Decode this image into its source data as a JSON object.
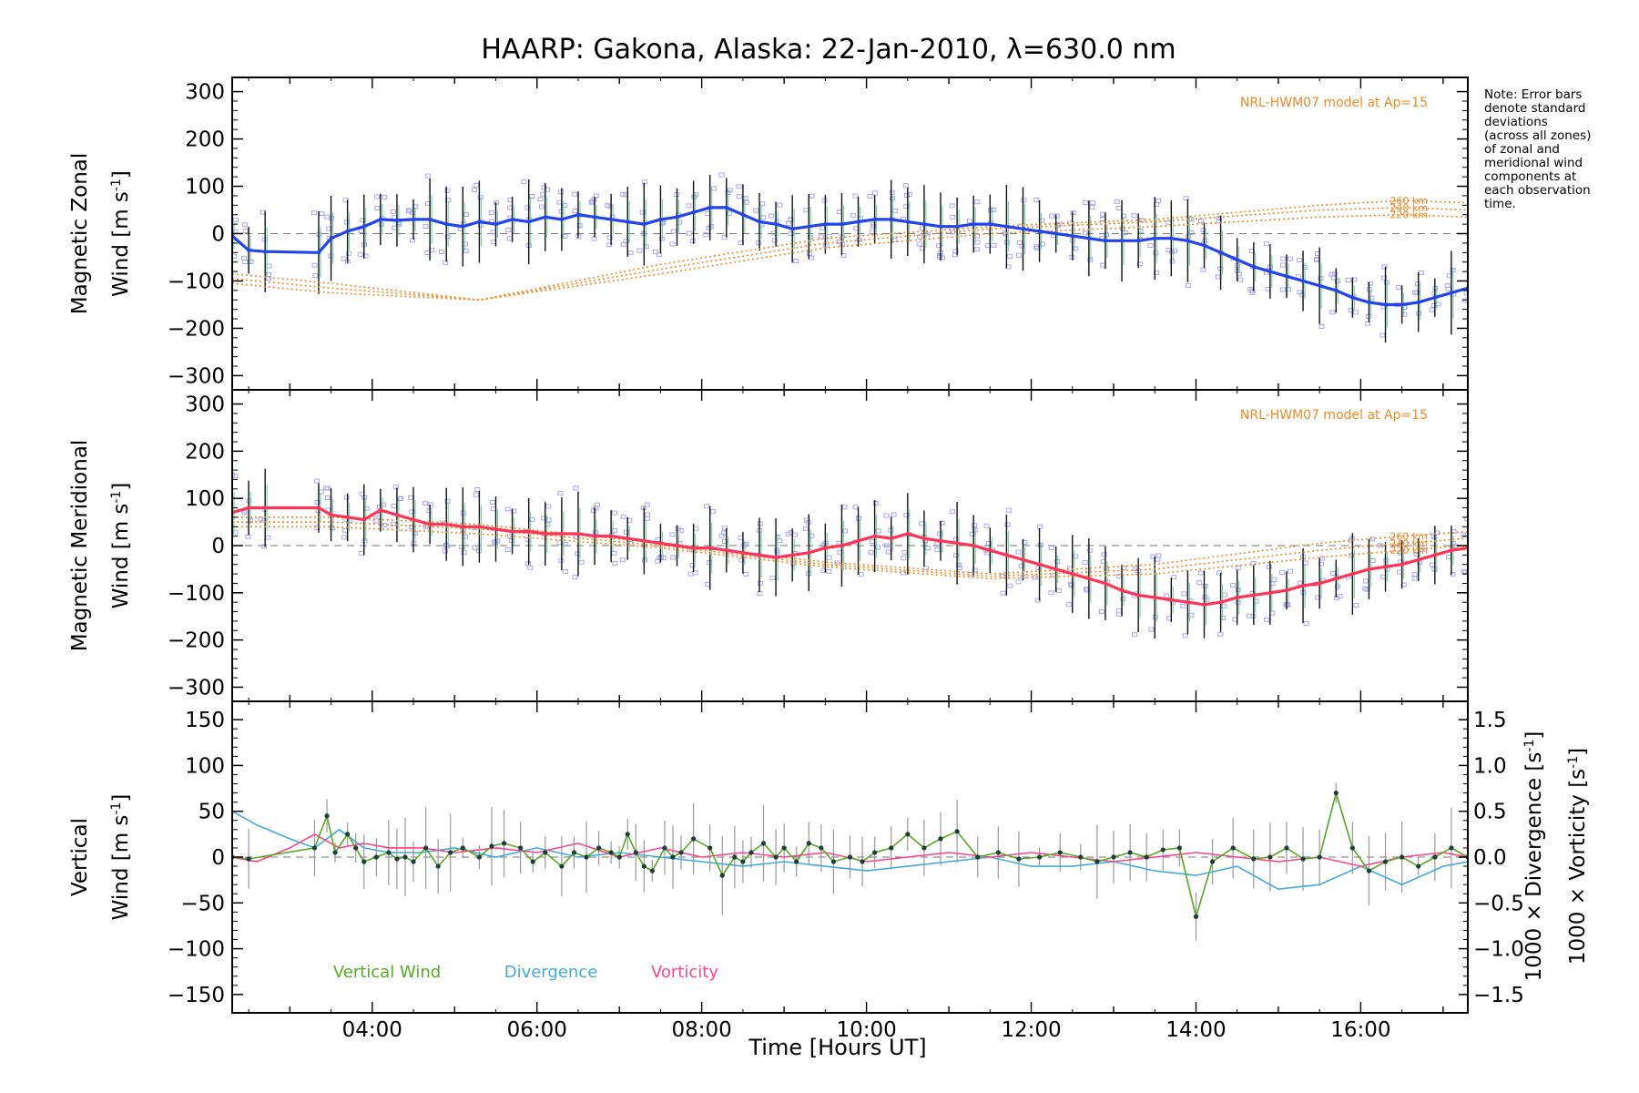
{
  "title": "HAARP: Gakona,  Alaska: 22-Jan-2010, λ=630.0 nm",
  "note_lines": [
    "Note: Error bars",
    "denote standard",
    "deviations",
    "(across all zones)",
    "of zonal and",
    "meridional wind",
    "components at",
    "each observation",
    "time."
  ],
  "xaxis": {
    "label": "Time [Hours UT]",
    "ticks": [
      "04:00",
      "06:00",
      "08:00",
      "10:00",
      "12:00",
      "14:00",
      "16:00"
    ],
    "range": [
      2.3,
      17.3
    ]
  },
  "colors": {
    "zonal": "#2244ee",
    "meridional": "#ff3355",
    "vertical": "#55aa22",
    "divergence": "#44aadd",
    "vorticity": "#ff4488",
    "model": "#f08a24",
    "zone_boxes": "#a8a8ee",
    "error_bars": "#111111"
  },
  "chart_data": [
    {
      "type": "line",
      "panel": "zonal",
      "ylabel_line1": "Magnetic Zonal",
      "ylabel_line2": "Wind [m s",
      "ylabel_sup": "-1",
      "ylabel_end": "]",
      "ylim": [
        -330,
        330
      ],
      "yticks": [
        "300",
        "200",
        "100",
        "0",
        "−100",
        "−200",
        "−300"
      ],
      "model_label": "NRL-HWM07 model at Ap=15",
      "model_alt_labels": [
        "260 km",
        "240 km",
        "220 km"
      ],
      "x": [
        2.3,
        2.5,
        2.7,
        3.35,
        3.5,
        3.7,
        3.9,
        4.1,
        4.3,
        4.5,
        4.7,
        4.9,
        5.1,
        5.3,
        5.5,
        5.7,
        5.9,
        6.1,
        6.3,
        6.5,
        6.7,
        6.9,
        7.1,
        7.3,
        7.5,
        7.7,
        7.9,
        8.1,
        8.3,
        8.5,
        8.7,
        8.9,
        9.1,
        9.3,
        9.5,
        9.7,
        9.9,
        10.1,
        10.3,
        10.5,
        10.7,
        10.9,
        11.1,
        11.3,
        11.5,
        11.7,
        11.9,
        12.1,
        12.3,
        12.5,
        12.7,
        12.9,
        13.1,
        13.3,
        13.5,
        13.7,
        13.9,
        14.1,
        14.3,
        14.5,
        14.7,
        14.9,
        15.1,
        15.3,
        15.5,
        15.7,
        15.9,
        16.1,
        16.3,
        16.5,
        16.7,
        16.9,
        17.1,
        17.3
      ],
      "series": [
        {
          "values": [
            -5,
            -35,
            -38,
            -40,
            -10,
            5,
            15,
            30,
            28,
            30,
            30,
            20,
            15,
            25,
            20,
            30,
            25,
            35,
            30,
            40,
            35,
            30,
            25,
            20,
            30,
            35,
            45,
            55,
            55,
            40,
            25,
            20,
            10,
            15,
            20,
            20,
            25,
            30,
            30,
            25,
            20,
            15,
            15,
            20,
            20,
            15,
            10,
            5,
            0,
            -5,
            -10,
            -15,
            -15,
            -15,
            -10,
            -10,
            -15,
            -25,
            -40,
            -55,
            -70,
            -80,
            -90,
            -100,
            -110,
            -120,
            -135,
            -145,
            -150,
            -150,
            -145,
            -135,
            -125,
            -115
          ]
        }
      ],
      "model": [
        {
          "name": "260 km",
          "x": [
            2.3,
            3.5,
            5.3,
            7.5,
            9.5,
            11.5,
            13.5,
            15.5,
            16.5,
            17.3
          ],
          "values": [
            -85,
            -105,
            -140,
            -65,
            -10,
            15,
            30,
            60,
            70,
            65
          ]
        },
        {
          "name": "240 km",
          "x": [
            2.3,
            3.5,
            5.3,
            7.5,
            9.5,
            11.5,
            13.5,
            15.5,
            16.5,
            17.3
          ],
          "values": [
            -95,
            -115,
            -140,
            -75,
            -20,
            10,
            25,
            50,
            55,
            50
          ]
        },
        {
          "name": "220 km",
          "x": [
            2.3,
            3.5,
            5.3,
            7.5,
            9.5,
            11.5,
            13.5,
            15.5,
            16.5,
            17.3
          ],
          "values": [
            -105,
            -125,
            -140,
            -85,
            -30,
            0,
            15,
            35,
            40,
            35
          ]
        }
      ]
    },
    {
      "type": "line",
      "panel": "meridional",
      "ylabel_line1": "Magnetic Meridional",
      "ylabel_line2": "Wind [m s",
      "ylabel_sup": "-1",
      "ylabel_end": "]",
      "ylim": [
        -330,
        330
      ],
      "yticks": [
        "300",
        "200",
        "100",
        "0",
        "−100",
        "−200",
        "−300"
      ],
      "model_label": "NRL-HWM07 model at Ap=15",
      "model_alt_labels": [
        "260 km",
        "240 km",
        "220 km"
      ],
      "x": [
        2.3,
        2.5,
        2.7,
        3.35,
        3.5,
        3.7,
        3.9,
        4.1,
        4.3,
        4.5,
        4.7,
        4.9,
        5.1,
        5.3,
        5.5,
        5.7,
        5.9,
        6.1,
        6.3,
        6.5,
        6.7,
        6.9,
        7.1,
        7.3,
        7.5,
        7.7,
        7.9,
        8.1,
        8.3,
        8.5,
        8.7,
        8.9,
        9.1,
        9.3,
        9.5,
        9.7,
        9.9,
        10.1,
        10.3,
        10.5,
        10.7,
        10.9,
        11.1,
        11.3,
        11.5,
        11.7,
        11.9,
        12.1,
        12.3,
        12.5,
        12.7,
        12.9,
        13.1,
        13.3,
        13.5,
        13.7,
        13.9,
        14.1,
        14.3,
        14.5,
        14.7,
        14.9,
        15.1,
        15.3,
        15.5,
        15.7,
        15.9,
        16.1,
        16.3,
        16.5,
        16.7,
        16.9,
        17.1,
        17.3
      ],
      "series": [
        {
          "values": [
            70,
            80,
            80,
            80,
            65,
            60,
            55,
            75,
            65,
            55,
            45,
            45,
            40,
            40,
            35,
            30,
            30,
            25,
            25,
            25,
            20,
            20,
            15,
            10,
            5,
            0,
            -5,
            -5,
            -10,
            -15,
            -20,
            -25,
            -20,
            -15,
            -5,
            0,
            10,
            20,
            15,
            25,
            15,
            10,
            5,
            0,
            -10,
            -20,
            -30,
            -40,
            -50,
            -60,
            -70,
            -80,
            -95,
            -105,
            -110,
            -115,
            -120,
            -125,
            -120,
            -110,
            -105,
            -100,
            -95,
            -85,
            -80,
            -70,
            -60,
            -50,
            -45,
            -40,
            -30,
            -20,
            -10,
            -5
          ]
        }
      ],
      "model": [
        {
          "name": "260 km",
          "x": [
            2.3,
            3.5,
            5.3,
            7.5,
            9.5,
            11.5,
            13.5,
            15.5,
            16.5,
            17.3
          ],
          "values": [
            60,
            60,
            45,
            5,
            -35,
            -60,
            -40,
            5,
            20,
            30
          ]
        },
        {
          "name": "240 km",
          "x": [
            2.3,
            3.5,
            5.3,
            7.5,
            9.5,
            11.5,
            13.5,
            15.5,
            16.5,
            17.3
          ],
          "values": [
            50,
            50,
            35,
            0,
            -40,
            -65,
            -50,
            -10,
            5,
            15
          ]
        },
        {
          "name": "220 km",
          "x": [
            2.3,
            3.5,
            5.3,
            7.5,
            9.5,
            11.5,
            13.5,
            15.5,
            16.5,
            17.3
          ],
          "values": [
            40,
            40,
            25,
            -5,
            -45,
            -70,
            -60,
            -25,
            -10,
            0
          ]
        }
      ]
    },
    {
      "type": "line",
      "panel": "vertical",
      "ylabel_line1": "Vertical",
      "ylabel_line2": "Wind [m s",
      "ylabel_sup": "-1",
      "ylabel_end": "]",
      "ylim": [
        -170,
        170
      ],
      "yticks": [
        "150",
        "100",
        "50",
        "0",
        "−50",
        "−100",
        "−150"
      ],
      "y2lim": [
        -1.7,
        1.7
      ],
      "y2ticks": [
        "1.5",
        "1.0",
        "0.5",
        "0.0",
        "−0.5",
        "−1.0",
        "−1.5"
      ],
      "y2label_div": "1000 × Divergence [s",
      "y2label_vor": "1000 × Vorticity [s",
      "y2label_sup": "-1",
      "y2label_end": "]",
      "legend": [
        "Vertical Wind",
        "Divergence",
        "Vorticity"
      ],
      "series": [
        {
          "name": "Vertical Wind",
          "x": [
            2.3,
            2.5,
            3.3,
            3.45,
            3.55,
            3.7,
            3.8,
            3.9,
            4.05,
            4.2,
            4.3,
            4.4,
            4.5,
            4.65,
            4.8,
            4.95,
            5.1,
            5.3,
            5.45,
            5.6,
            5.8,
            5.95,
            6.1,
            6.3,
            6.45,
            6.6,
            6.75,
            6.9,
            7.0,
            7.1,
            7.2,
            7.3,
            7.4,
            7.55,
            7.65,
            7.75,
            7.9,
            8.1,
            8.25,
            8.4,
            8.5,
            8.6,
            8.75,
            8.9,
            9.0,
            9.15,
            9.3,
            9.45,
            9.6,
            9.8,
            9.95,
            10.1,
            10.3,
            10.5,
            10.7,
            10.9,
            11.1,
            11.35,
            11.6,
            11.85,
            12.1,
            12.35,
            12.6,
            12.8,
            13.0,
            13.2,
            13.4,
            13.6,
            13.8,
            14.0,
            14.2,
            14.45,
            14.7,
            14.9,
            15.1,
            15.3,
            15.5,
            15.7,
            15.9,
            16.1,
            16.3,
            16.5,
            16.7,
            16.9,
            17.1,
            17.3
          ],
          "values": [
            0,
            -2,
            10,
            45,
            5,
            25,
            10,
            -5,
            0,
            5,
            -2,
            0,
            -5,
            10,
            -10,
            5,
            10,
            0,
            12,
            15,
            10,
            -5,
            5,
            -10,
            5,
            0,
            10,
            5,
            0,
            25,
            5,
            -10,
            -15,
            10,
            0,
            5,
            20,
            10,
            -20,
            0,
            -5,
            5,
            15,
            0,
            10,
            -5,
            15,
            10,
            -5,
            0,
            -5,
            5,
            10,
            25,
            10,
            20,
            28,
            0,
            5,
            -2,
            0,
            5,
            0,
            -5,
            0,
            5,
            0,
            8,
            10,
            -65,
            -5,
            10,
            -2,
            0,
            10,
            -2,
            0,
            70,
            10,
            -15,
            -5,
            0,
            -10,
            0,
            10,
            0
          ]
        },
        {
          "name": "Divergence",
          "x": [
            2.3,
            2.6,
            3.0,
            3.3,
            3.6,
            3.9,
            4.2,
            4.6,
            5.0,
            5.5,
            6.0,
            6.5,
            7.0,
            7.5,
            8.0,
            8.5,
            9.0,
            9.5,
            10.0,
            10.5,
            11.0,
            11.5,
            12.0,
            12.5,
            13.0,
            13.5,
            14.0,
            14.5,
            15.0,
            15.5,
            16.0,
            16.5,
            17.0,
            17.3
          ],
          "values": [
            0.5,
            0.35,
            0.2,
            0.1,
            0.3,
            0.1,
            0.05,
            0.05,
            0.1,
            0.0,
            0.1,
            0.0,
            0.05,
            0.0,
            -0.05,
            -0.1,
            -0.05,
            -0.1,
            -0.15,
            -0.1,
            -0.05,
            0.0,
            -0.1,
            -0.1,
            -0.05,
            -0.15,
            -0.2,
            -0.1,
            -0.35,
            -0.3,
            -0.1,
            -0.3,
            -0.1,
            -0.05
          ]
        },
        {
          "name": "Vorticity",
          "x": [
            2.3,
            2.6,
            3.0,
            3.3,
            3.6,
            3.9,
            4.2,
            4.6,
            5.0,
            5.5,
            6.0,
            6.5,
            7.0,
            7.5,
            8.0,
            8.5,
            9.0,
            9.5,
            10.0,
            10.5,
            11.0,
            11.5,
            12.0,
            12.5,
            13.0,
            13.5,
            14.0,
            14.5,
            15.0,
            15.5,
            16.0,
            16.5,
            17.0,
            17.3
          ],
          "values": [
            0.0,
            -0.05,
            0.1,
            0.25,
            0.1,
            0.15,
            0.1,
            0.1,
            0.05,
            0.1,
            0.05,
            0.15,
            0.0,
            0.1,
            0.0,
            0.05,
            0.0,
            0.05,
            -0.05,
            0.0,
            0.05,
            0.0,
            0.05,
            0.0,
            -0.05,
            0.0,
            0.05,
            0.0,
            -0.05,
            0.0,
            -0.1,
            0.0,
            0.05,
            0.0
          ]
        }
      ]
    }
  ]
}
